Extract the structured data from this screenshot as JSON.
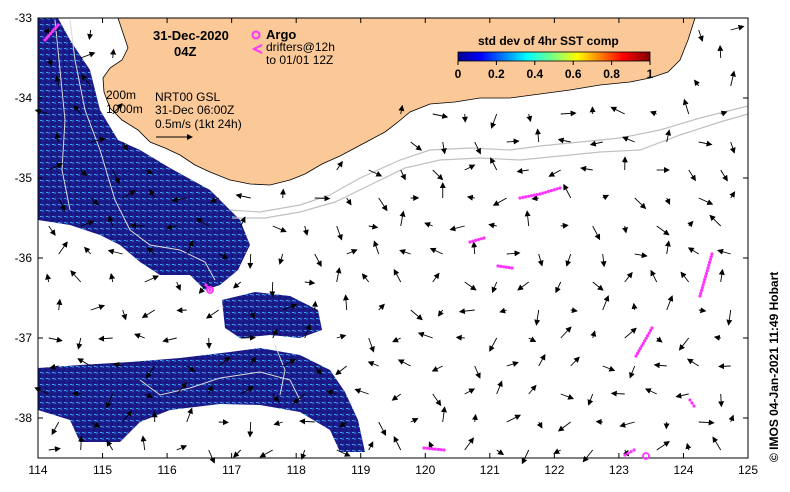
{
  "map": {
    "date_label": "31-Dec-2020",
    "time_label": "04Z",
    "lon_ticks": [
      114,
      115,
      116,
      117,
      118,
      119,
      120,
      121,
      122,
      123,
      124,
      125
    ],
    "lat_ticks": [
      -33,
      -34,
      -35,
      -36,
      -37,
      -38
    ],
    "lon_range": [
      114,
      125
    ],
    "lat_range": [
      -38.5,
      -33
    ],
    "colors": {
      "land": "#fbc898",
      "coast_line": "#000000",
      "sst_low": "#1a1a8c",
      "sst_mid": "#2aa0d8",
      "argo": "#ff33ff",
      "isobath": "#c0c0c0",
      "current_arrow": "#000000"
    }
  },
  "legend": {
    "argo_label": "Argo",
    "drifters_label": "drifters@12h",
    "drifters_to_label": "to 01/01 12Z",
    "isobath_200": "200m",
    "isobath_1000": "1000m",
    "model_label": "NRT00 GSL",
    "model_time": "31-Dec 06:00Z",
    "scale_label": "0.5m/s (1kt 24h)"
  },
  "colorbar": {
    "title": "std dev of 4hr SST comp",
    "ticks": [
      "0",
      "0.2",
      "0.4",
      "0.6",
      "0.8",
      "1"
    ]
  },
  "credit": "© IMOS 04-Jan-2021 11:49 Hobart"
}
